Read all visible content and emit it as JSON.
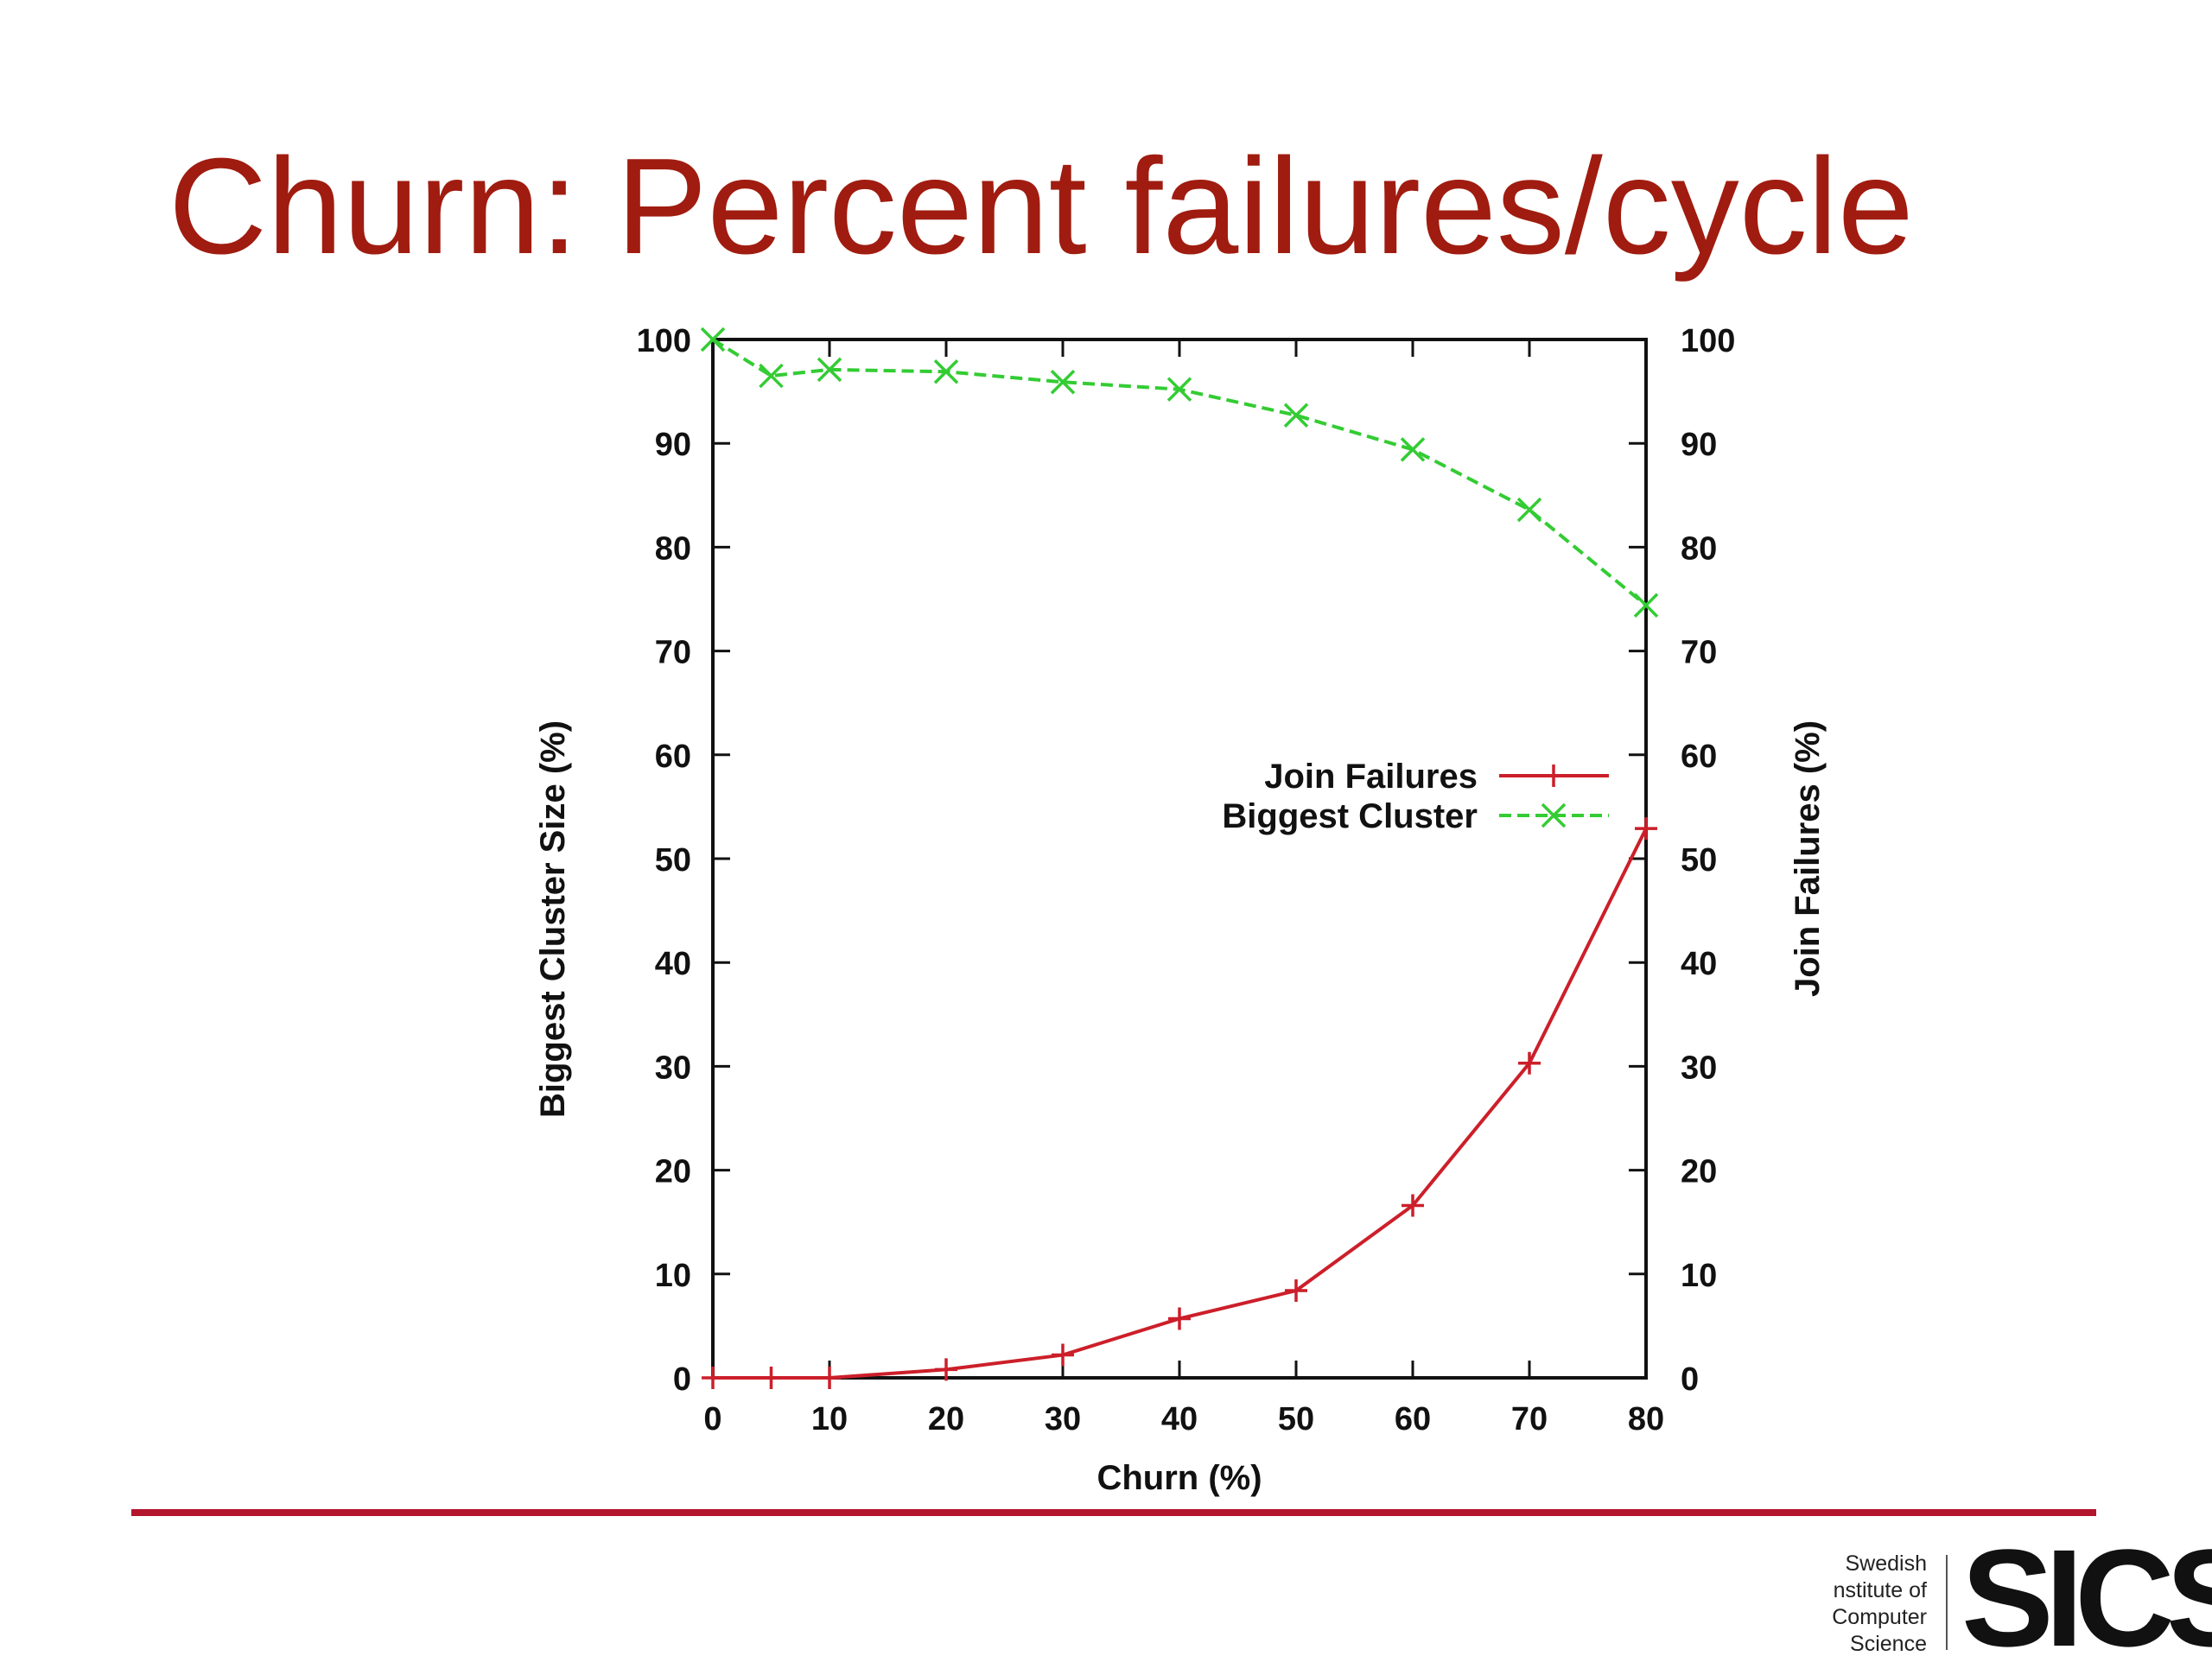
{
  "slide": {
    "title": "Churn: Percent failures/cycle"
  },
  "chart_data": {
    "type": "line",
    "xlabel": "Churn (%)",
    "ylabel_left": "Biggest Cluster Size (%)",
    "ylabel_right": "Join Failures (%)",
    "xlim": [
      0,
      80
    ],
    "ylim_left": [
      0,
      100
    ],
    "ylim_right": [
      0,
      100
    ],
    "x_ticks": [
      "0",
      "10",
      "20",
      "30",
      "40",
      "50",
      "60",
      "70",
      "80"
    ],
    "y_ticks_left": [
      "0",
      "10",
      "20",
      "30",
      "40",
      "50",
      "60",
      "70",
      "80",
      "90",
      "100"
    ],
    "y_ticks_right": [
      "0",
      "10",
      "20",
      "30",
      "40",
      "50",
      "60",
      "70",
      "80",
      "90",
      "100"
    ],
    "grid": false,
    "legend_position": "center-right",
    "series": [
      {
        "name": "Join Failures",
        "axis": "right",
        "color": "#cc1f2a",
        "marker": "plus",
        "line_style": "solid",
        "x": [
          0,
          5,
          10,
          20,
          30,
          40,
          50,
          60,
          70,
          80
        ],
        "y": [
          0,
          0,
          0,
          0.8,
          2.2,
          5.7,
          8.4,
          16.6,
          30.3,
          52.9
        ]
      },
      {
        "name": "Biggest Cluster",
        "axis": "left",
        "color": "#33cc33",
        "marker": "cross",
        "line_style": "dashed",
        "x": [
          0,
          5,
          10,
          20,
          30,
          40,
          50,
          60,
          70,
          80
        ],
        "y": [
          100,
          96.5,
          97.1,
          96.9,
          95.9,
          95.2,
          92.7,
          89.4,
          83.6,
          74.4
        ]
      }
    ]
  },
  "logo": {
    "caption_lines": [
      "Swedish",
      "nstitute of",
      "Computer",
      "Science"
    ],
    "wordmark": "SICS"
  }
}
